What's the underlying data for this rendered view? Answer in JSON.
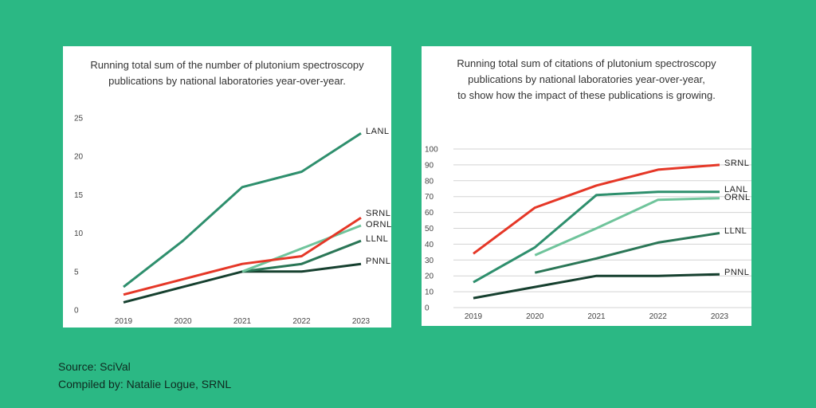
{
  "colors": {
    "background": "#2bb884",
    "panel": "#ffffff",
    "grid": "#d3d3d3",
    "LANL": "#2e8f6d",
    "SRNL": "#e53727",
    "ORNL": "#6fc49b",
    "LLNL": "#2a7656",
    "PNNL": "#16402f"
  },
  "footer": {
    "source": "Source: SciVal",
    "compiled": "Compiled by: Natalie Logue, SRNL"
  },
  "chart_data": [
    {
      "type": "line",
      "title_lines": [
        "Running total sum of the number of plutonium spectroscopy",
        "publications by national laboratories year-over-year."
      ],
      "categories": [
        "2019",
        "2020",
        "2021",
        "2022",
        "2023"
      ],
      "ylim": [
        0,
        25
      ],
      "yticks": [
        0,
        5,
        10,
        15,
        20,
        25
      ],
      "grid": false,
      "series": [
        {
          "name": "LANL",
          "values": [
            3,
            9,
            16,
            18,
            23
          ]
        },
        {
          "name": "SRNL",
          "values": [
            2,
            4,
            6,
            7,
            12
          ]
        },
        {
          "name": "ORNL",
          "values": [
            null,
            null,
            5,
            8,
            11
          ]
        },
        {
          "name": "LLNL",
          "values": [
            null,
            null,
            5,
            6,
            9
          ]
        },
        {
          "name": "PNNL",
          "values": [
            1,
            3,
            5,
            5,
            6
          ]
        }
      ]
    },
    {
      "type": "line",
      "title_lines": [
        "Running total sum of citations of plutonium spectroscopy",
        "publications by national laboratories year-over-year,",
        "to show how the impact of these publications is growing."
      ],
      "categories": [
        "2019",
        "2020",
        "2021",
        "2022",
        "2023"
      ],
      "ylim": [
        0,
        100
      ],
      "yticks": [
        0,
        10,
        20,
        30,
        40,
        50,
        60,
        70,
        80,
        90,
        100
      ],
      "grid": true,
      "series": [
        {
          "name": "SRNL",
          "values": [
            34,
            63,
            77,
            87,
            90
          ]
        },
        {
          "name": "LANL",
          "values": [
            16,
            38,
            71,
            73,
            73
          ]
        },
        {
          "name": "ORNL",
          "values": [
            null,
            33,
            50,
            68,
            69
          ]
        },
        {
          "name": "LLNL",
          "values": [
            null,
            22,
            31,
            41,
            47
          ]
        },
        {
          "name": "PNNL",
          "values": [
            6,
            13,
            20,
            20,
            21
          ]
        }
      ]
    }
  ]
}
